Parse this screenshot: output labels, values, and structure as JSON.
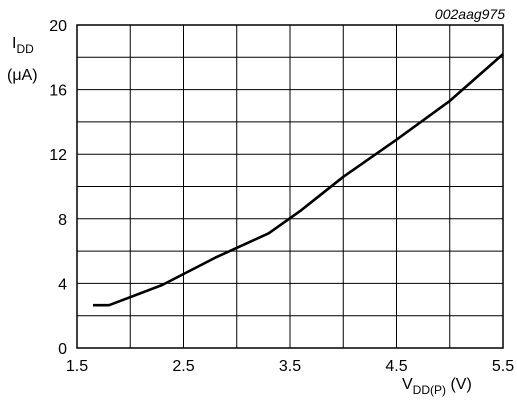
{
  "reference_code": "002aag975",
  "chart_data": {
    "type": "line",
    "title": "",
    "xlabel": {
      "main": "V",
      "sub": "DD(P)",
      "unit": " (V)"
    },
    "ylabel": {
      "main": "I",
      "sub": "DD",
      "unit": "(μA)"
    },
    "xlim": [
      1.5,
      5.5
    ],
    "ylim": [
      0,
      20
    ],
    "x_ticks": [
      1.5,
      2.5,
      3.5,
      4.5,
      5.5
    ],
    "x_tick_labels": [
      "1.5",
      "2.5",
      "3.5",
      "4.5",
      "5.5"
    ],
    "y_ticks": [
      0,
      4,
      8,
      12,
      16,
      20
    ],
    "y_tick_labels": [
      "0",
      "4",
      "8",
      "12",
      "16",
      "20"
    ],
    "grid": true,
    "grid_x_step": 0.5,
    "grid_y_step": 2,
    "series": [
      {
        "x": [
          1.65,
          1.8,
          2.3,
          2.8,
          3.3,
          3.6,
          4.0,
          4.5,
          5.0,
          5.5
        ],
        "y": [
          2.65,
          2.65,
          3.9,
          5.6,
          7.1,
          8.5,
          10.6,
          12.9,
          15.3,
          18.2
        ]
      }
    ],
    "line_color": "#000000"
  }
}
